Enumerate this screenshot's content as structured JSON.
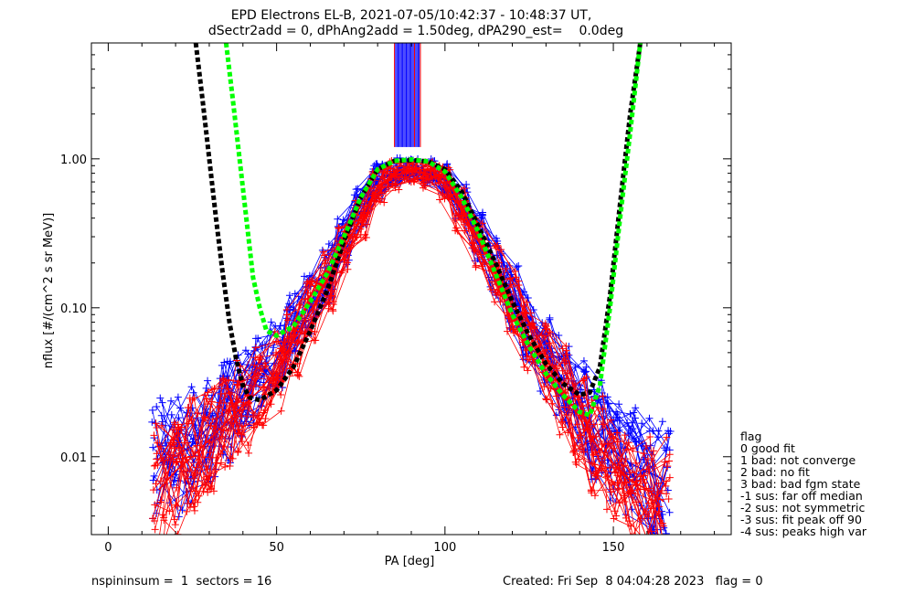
{
  "chart_data": {
    "type": "scatter",
    "title": "EPD Electrons EL-B, 2021-07-05/10:42:37 - 10:48:37 UT,",
    "subtitle": "dSectr2add = 0, dPhAng2add = 1.50deg, dPA290_est=    0.0deg",
    "xlabel": "PA [deg]",
    "ylabel": "nflux [#/(cm^2 s sr MeV)]",
    "xlim": [
      -5,
      185
    ],
    "ylim": [
      0.003,
      6
    ],
    "y_scale": "log",
    "x_ticks": [
      0,
      50,
      100,
      150
    ],
    "x_tick_labels": [
      "0",
      "50",
      "100",
      "150"
    ],
    "y_ticks": [
      0.01,
      0.1,
      1.0
    ],
    "y_tick_labels": [
      "0.01",
      "0.10",
      "1.00"
    ],
    "colors": {
      "blue": "#0000ff",
      "red": "#ff0000",
      "green": "#00ff00",
      "black": "#000000"
    },
    "series": [
      {
        "color": "#0000ff",
        "style": "line+plus",
        "x": [
          15,
          20,
          25,
          30,
          35,
          40,
          45,
          50,
          55,
          60,
          65,
          70,
          75,
          80,
          85,
          90,
          95,
          100,
          105,
          110,
          115,
          120,
          125,
          130,
          135,
          140,
          145,
          150,
          155,
          160,
          165
        ],
        "y": [
          0.009,
          0.01,
          0.012,
          0.016,
          0.02,
          0.026,
          0.033,
          0.045,
          0.07,
          0.11,
          0.17,
          0.28,
          0.45,
          0.7,
          0.82,
          0.85,
          0.83,
          0.72,
          0.48,
          0.3,
          0.19,
          0.12,
          0.075,
          0.05,
          0.033,
          0.022,
          0.015,
          0.011,
          0.009,
          0.008,
          0.007
        ]
      },
      {
        "color": "#ff0000",
        "style": "line+plus",
        "x": [
          15,
          20,
          25,
          30,
          35,
          40,
          45,
          50,
          55,
          60,
          65,
          70,
          75,
          80,
          85,
          90,
          95,
          100,
          105,
          110,
          115,
          120,
          125,
          130,
          135,
          140,
          145,
          150,
          155,
          160,
          165
        ],
        "y": [
          0.006,
          0.008,
          0.01,
          0.013,
          0.017,
          0.022,
          0.028,
          0.038,
          0.06,
          0.095,
          0.15,
          0.25,
          0.4,
          0.65,
          0.78,
          0.82,
          0.8,
          0.68,
          0.45,
          0.28,
          0.17,
          0.11,
          0.065,
          0.042,
          0.028,
          0.018,
          0.012,
          0.009,
          0.007,
          0.006,
          0.005
        ]
      },
      {
        "color": "#000000",
        "style": "dotted-thick",
        "x": [
          26,
          28,
          30,
          32,
          34,
          36,
          38,
          40,
          42,
          45,
          50,
          55,
          60,
          65,
          70,
          75,
          80,
          85,
          90,
          95,
          100,
          105,
          110,
          115,
          120,
          125,
          130,
          135,
          140,
          143,
          146,
          149,
          152,
          155,
          158
        ],
        "y": [
          6,
          2.5,
          1.0,
          0.4,
          0.17,
          0.08,
          0.045,
          0.03,
          0.025,
          0.024,
          0.028,
          0.04,
          0.07,
          0.13,
          0.28,
          0.55,
          0.85,
          0.97,
          0.98,
          0.96,
          0.85,
          0.6,
          0.35,
          0.2,
          0.11,
          0.065,
          0.042,
          0.031,
          0.026,
          0.027,
          0.04,
          0.12,
          0.5,
          2.0,
          6
        ]
      },
      {
        "color": "#00ff00",
        "style": "dotted-thick",
        "x": [
          35,
          37,
          39,
          41,
          43,
          45,
          47,
          50,
          55,
          60,
          65,
          70,
          75,
          80,
          85,
          90,
          95,
          100,
          105,
          110,
          115,
          120,
          125,
          130,
          135,
          140,
          143,
          146,
          149,
          152,
          155,
          158
        ],
        "y": [
          6,
          2.5,
          1.0,
          0.4,
          0.16,
          0.1,
          0.07,
          0.065,
          0.075,
          0.11,
          0.17,
          0.3,
          0.55,
          0.85,
          0.97,
          0.99,
          0.96,
          0.82,
          0.55,
          0.32,
          0.17,
          0.09,
          0.055,
          0.036,
          0.026,
          0.02,
          0.019,
          0.03,
          0.1,
          0.4,
          1.5,
          6
        ]
      }
    ],
    "vertical_bars": {
      "color": "#0000ff",
      "x_range": [
        85,
        93
      ],
      "y_range": [
        1.2,
        6
      ]
    },
    "legend": {
      "placement": "right",
      "title": "flag",
      "entries": [
        " 0 good fit",
        " 1 bad: not converge",
        " 2 bad: no fit",
        " 3 bad: bad fgm state",
        "-1 sus: far off median",
        "-2 sus: not symmetric",
        "-3 sus: fit peak off 90",
        "-4 sus: peaks high var"
      ]
    },
    "footer_left": "nspininsum =  1  sectors = 16",
    "footer_right": "Created: Fri Sep  8 04:04:28 2023   flag = 0"
  }
}
